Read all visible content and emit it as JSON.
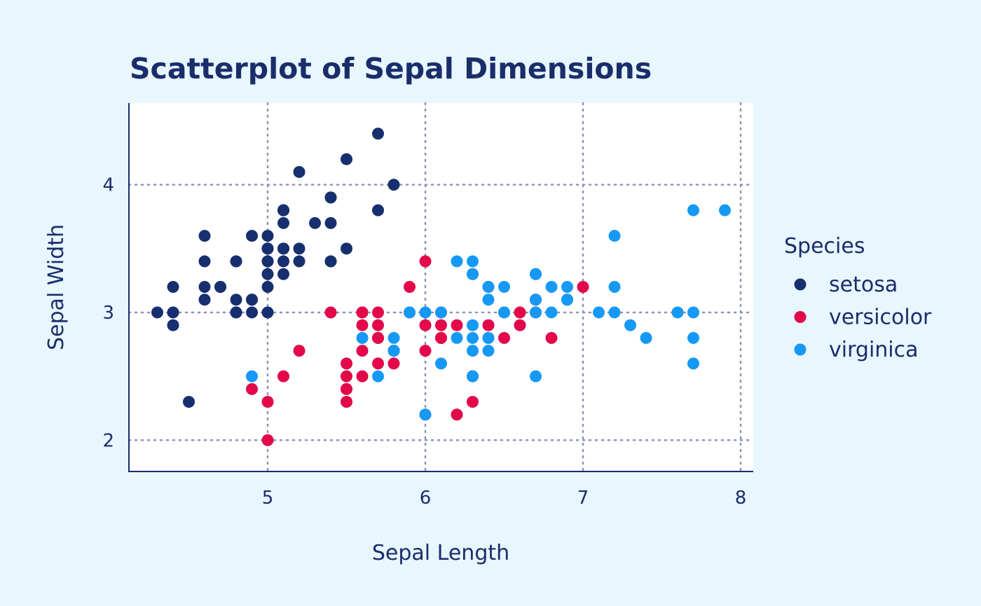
{
  "colors": {
    "background": "#e8f6fe",
    "panel": "#ffffff",
    "text": "#1a2d6b",
    "grid": "#8a93b5",
    "setosa": "#172f6e",
    "versicolor": "#e3084a",
    "virginica": "#1699f4"
  },
  "chart_data": {
    "type": "scatter",
    "title": "Scatterplot of Sepal Dimensions",
    "xlabel": "Sepal Length",
    "ylabel": "Sepal Width",
    "xlim": [
      4.12,
      8.08
    ],
    "ylim": [
      1.76,
      4.64
    ],
    "xticks": [
      5,
      6,
      7,
      8
    ],
    "yticks": [
      2,
      3,
      4
    ],
    "grid": true,
    "legend": {
      "title": "Species",
      "position": "right"
    },
    "series": [
      {
        "name": "setosa",
        "points": [
          [
            5.1,
            3.5
          ],
          [
            4.9,
            3.0
          ],
          [
            4.7,
            3.2
          ],
          [
            4.6,
            3.1
          ],
          [
            5.0,
            3.6
          ],
          [
            5.4,
            3.9
          ],
          [
            4.6,
            3.4
          ],
          [
            5.0,
            3.4
          ],
          [
            4.4,
            2.9
          ],
          [
            4.9,
            3.1
          ],
          [
            5.4,
            3.7
          ],
          [
            4.8,
            3.4
          ],
          [
            4.8,
            3.0
          ],
          [
            4.3,
            3.0
          ],
          [
            5.8,
            4.0
          ],
          [
            5.7,
            4.4
          ],
          [
            5.4,
            3.9
          ],
          [
            5.1,
            3.5
          ],
          [
            5.7,
            3.8
          ],
          [
            5.1,
            3.8
          ],
          [
            5.4,
            3.4
          ],
          [
            5.1,
            3.7
          ],
          [
            4.6,
            3.6
          ],
          [
            5.1,
            3.3
          ],
          [
            4.8,
            3.4
          ],
          [
            5.0,
            3.0
          ],
          [
            5.0,
            3.4
          ],
          [
            5.2,
            3.5
          ],
          [
            5.2,
            3.4
          ],
          [
            4.7,
            3.2
          ],
          [
            4.8,
            3.1
          ],
          [
            5.4,
            3.4
          ],
          [
            5.2,
            4.1
          ],
          [
            5.5,
            4.2
          ],
          [
            4.9,
            3.1
          ],
          [
            5.0,
            3.2
          ],
          [
            5.5,
            3.5
          ],
          [
            4.9,
            3.6
          ],
          [
            4.4,
            3.0
          ],
          [
            5.1,
            3.4
          ],
          [
            5.0,
            3.5
          ],
          [
            4.5,
            2.3
          ],
          [
            4.4,
            3.2
          ],
          [
            5.0,
            3.5
          ],
          [
            5.1,
            3.8
          ],
          [
            4.8,
            3.0
          ],
          [
            5.1,
            3.8
          ],
          [
            4.6,
            3.2
          ],
          [
            5.3,
            3.7
          ],
          [
            5.0,
            3.3
          ]
        ]
      },
      {
        "name": "versicolor",
        "points": [
          [
            7.0,
            3.2
          ],
          [
            6.4,
            3.2
          ],
          [
            6.9,
            3.1
          ],
          [
            5.5,
            2.3
          ],
          [
            6.5,
            2.8
          ],
          [
            5.7,
            2.8
          ],
          [
            6.3,
            3.3
          ],
          [
            4.9,
            2.4
          ],
          [
            6.6,
            2.9
          ],
          [
            5.2,
            2.7
          ],
          [
            5.0,
            2.0
          ],
          [
            5.9,
            3.0
          ],
          [
            6.0,
            2.2
          ],
          [
            6.1,
            2.9
          ],
          [
            5.6,
            2.9
          ],
          [
            6.7,
            3.1
          ],
          [
            5.6,
            3.0
          ],
          [
            5.8,
            2.7
          ],
          [
            6.2,
            2.2
          ],
          [
            5.6,
            2.5
          ],
          [
            5.9,
            3.2
          ],
          [
            6.1,
            2.8
          ],
          [
            6.3,
            2.5
          ],
          [
            6.1,
            2.8
          ],
          [
            6.4,
            2.9
          ],
          [
            6.6,
            3.0
          ],
          [
            6.8,
            2.8
          ],
          [
            6.7,
            3.0
          ],
          [
            6.0,
            2.9
          ],
          [
            5.7,
            2.6
          ],
          [
            5.5,
            2.4
          ],
          [
            5.5,
            2.4
          ],
          [
            5.8,
            2.7
          ],
          [
            6.0,
            2.7
          ],
          [
            5.4,
            3.0
          ],
          [
            6.0,
            3.4
          ],
          [
            6.7,
            3.1
          ],
          [
            6.3,
            2.3
          ],
          [
            5.6,
            3.0
          ],
          [
            5.5,
            2.5
          ],
          [
            5.5,
            2.6
          ],
          [
            6.1,
            3.0
          ],
          [
            5.8,
            2.6
          ],
          [
            5.0,
            2.3
          ],
          [
            5.6,
            2.7
          ],
          [
            5.7,
            3.0
          ],
          [
            5.7,
            2.9
          ],
          [
            6.2,
            2.9
          ],
          [
            5.1,
            2.5
          ],
          [
            5.7,
            2.8
          ]
        ]
      },
      {
        "name": "virginica",
        "points": [
          [
            6.3,
            3.3
          ],
          [
            5.8,
            2.7
          ],
          [
            7.1,
            3.0
          ],
          [
            6.3,
            2.9
          ],
          [
            6.5,
            3.0
          ],
          [
            7.6,
            3.0
          ],
          [
            4.9,
            2.5
          ],
          [
            7.3,
            2.9
          ],
          [
            6.7,
            2.5
          ],
          [
            7.2,
            3.6
          ],
          [
            6.5,
            3.2
          ],
          [
            6.4,
            2.7
          ],
          [
            6.8,
            3.0
          ],
          [
            5.7,
            2.5
          ],
          [
            5.8,
            2.8
          ],
          [
            6.4,
            3.2
          ],
          [
            6.5,
            3.0
          ],
          [
            7.7,
            3.8
          ],
          [
            7.7,
            2.6
          ],
          [
            6.0,
            2.2
          ],
          [
            6.9,
            3.2
          ],
          [
            5.6,
            2.8
          ],
          [
            7.7,
            2.8
          ],
          [
            6.3,
            2.7
          ],
          [
            6.7,
            3.3
          ],
          [
            7.2,
            3.2
          ],
          [
            6.2,
            2.8
          ],
          [
            6.1,
            3.0
          ],
          [
            6.4,
            2.8
          ],
          [
            7.2,
            3.0
          ],
          [
            7.4,
            2.8
          ],
          [
            7.9,
            3.8
          ],
          [
            6.4,
            2.8
          ],
          [
            6.3,
            2.8
          ],
          [
            6.1,
            2.6
          ],
          [
            7.7,
            3.0
          ],
          [
            6.3,
            3.4
          ],
          [
            6.4,
            3.1
          ],
          [
            6.0,
            3.0
          ],
          [
            6.9,
            3.1
          ],
          [
            6.7,
            3.1
          ],
          [
            6.9,
            3.1
          ],
          [
            5.8,
            2.7
          ],
          [
            6.8,
            3.2
          ],
          [
            6.7,
            3.3
          ],
          [
            6.7,
            3.0
          ],
          [
            6.3,
            2.5
          ],
          [
            6.5,
            3.0
          ],
          [
            6.2,
            3.4
          ],
          [
            5.9,
            3.0
          ]
        ]
      }
    ]
  }
}
